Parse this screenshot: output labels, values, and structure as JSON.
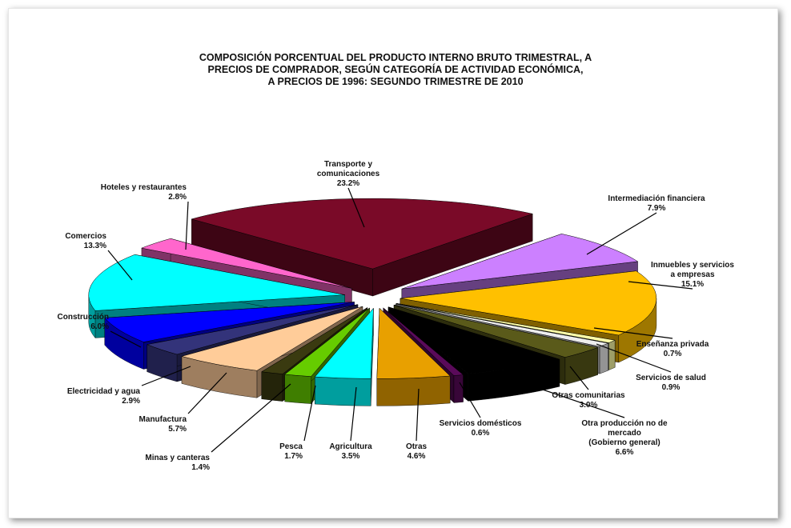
{
  "chart_data": {
    "type": "pie",
    "title_lines": [
      "COMPOSICIÓN PORCENTUAL DEL PRODUCTO INTERNO BRUTO TRIMESTRAL, A",
      "PRECIOS DE COMPRADOR, SEGÚN CATEGORÍA DE ACTIVIDAD ECONÓMICA,",
      "A PRECIOS DE 1996:  SEGUNDO TRIMESTRE DE 2010"
    ],
    "slices": [
      {
        "label_lines": [
          "Transporte y",
          "comunicaciones"
        ],
        "value": 23.2,
        "value_label": "23.2%",
        "color": "#7a0a28"
      },
      {
        "label_lines": [
          "Intermediación financiera"
        ],
        "value": 7.9,
        "value_label": "7.9%",
        "color": "#cc80ff"
      },
      {
        "label_lines": [
          "Inmuebles y servicios",
          "a empresas"
        ],
        "value": 15.1,
        "value_label": "15.1%",
        "color": "#ffc000"
      },
      {
        "label_lines": [
          "Enseñanza privada"
        ],
        "value": 0.7,
        "value_label": "0.7%",
        "color": "#ffffa8"
      },
      {
        "label_lines": [
          "Servicios de salud"
        ],
        "value": 0.9,
        "value_label": "0.9%",
        "color": "#eeeeee"
      },
      {
        "label_lines": [
          "Otras comunitarias"
        ],
        "value": 3.0,
        "value_label": "3.0%",
        "color": "#5a5a1a"
      },
      {
        "label_lines": [
          "Otra producción no de",
          "mercado",
          "(Gobierno general)"
        ],
        "value": 6.6,
        "value_label": "6.6%",
        "color": "#000000"
      },
      {
        "label_lines": [
          "Servicios domésticos"
        ],
        "value": 0.6,
        "value_label": "0.6%",
        "color": "#5a0a5a"
      },
      {
        "label_lines": [
          "Otras"
        ],
        "value": 4.6,
        "value_label": "4.6%",
        "color": "#e8a000"
      },
      {
        "label_lines": [
          "Agricultura"
        ],
        "value": 3.5,
        "value_label": "3.5%",
        "color": "#00ffff"
      },
      {
        "label_lines": [
          "Pesca"
        ],
        "value": 1.7,
        "value_label": "1.7%",
        "color": "#66cc00"
      },
      {
        "label_lines": [
          "Minas  y  canteras"
        ],
        "value": 1.4,
        "value_label": "1.4%",
        "color": "#3a3a10"
      },
      {
        "label_lines": [
          "Manufactura"
        ],
        "value": 5.7,
        "value_label": "5.7%",
        "color": "#ffcc99"
      },
      {
        "label_lines": [
          "Electricidad y agua"
        ],
        "value": 2.9,
        "value_label": "2.9%",
        "color": "#33337a"
      },
      {
        "label_lines": [
          "Construcción"
        ],
        "value": 6.0,
        "value_label": "6.0%",
        "color": "#0000ff"
      },
      {
        "label_lines": [
          "Comercios"
        ],
        "value": 13.3,
        "value_label": "13.3%",
        "color": "#00ffff"
      },
      {
        "label_lines": [
          "Hoteles  y restaurantes"
        ],
        "value": 2.8,
        "value_label": "2.8%",
        "color": "#ff66cc"
      }
    ],
    "legend": "none"
  }
}
